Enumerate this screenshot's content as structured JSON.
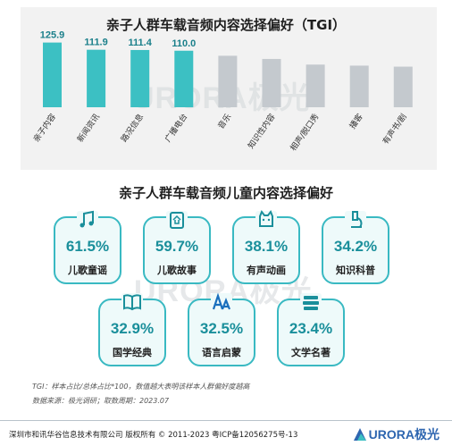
{
  "chart_data": [
    {
      "type": "bar",
      "title": "亲子人群车载音频内容选择偏好（TGI）",
      "categories": [
        "亲子内容",
        "新闻资讯",
        "路况信息",
        "广播电台",
        "音乐",
        "知识性内容",
        "相声/脱口秀",
        "播客",
        "有声书/剧"
      ],
      "values": [
        125.9,
        111.9,
        111.4,
        110.0,
        100.2,
        94.0,
        83.0,
        81.0,
        79.0
      ],
      "labeled": [
        true,
        true,
        true,
        true,
        false,
        false,
        false,
        false,
        false
      ],
      "colors": {
        "highlight": "#3cc0c3",
        "normal": "#c4c9ce",
        "label": "#1a7f8a"
      }
    },
    {
      "type": "table",
      "title": "亲子人群车载音频儿童内容选择偏好",
      "items": [
        {
          "label": "儿歌童谣",
          "value": "61.5%",
          "icon": "music-note-icon"
        },
        {
          "label": "儿歌故事",
          "value": "59.7%",
          "icon": "storybook-icon"
        },
        {
          "label": "有声动画",
          "value": "38.1%",
          "icon": "cat-tv-icon"
        },
        {
          "label": "知识科普",
          "value": "34.2%",
          "icon": "microscope-icon"
        },
        {
          "label": "国学经典",
          "value": "32.9%",
          "icon": "book-icon"
        },
        {
          "label": "语言启蒙",
          "value": "32.5%",
          "icon": "letters-icon"
        },
        {
          "label": "文学名著",
          "value": "23.4%",
          "icon": "book-stack-icon"
        }
      ]
    }
  ],
  "notes": {
    "tgi": "TGI：样本占比/总体占比*100，数值越大表明该样本人群偏好度越高",
    "source": "数据来源：极光调研；取数周期：2023.07"
  },
  "watermark": "URORA极光",
  "footer": {
    "copyright": "深圳市和讯华谷信息技术有限公司 版权所有 © 2011-2023 粤ICP备12056275号-13",
    "logo_text": "URORA极光"
  }
}
